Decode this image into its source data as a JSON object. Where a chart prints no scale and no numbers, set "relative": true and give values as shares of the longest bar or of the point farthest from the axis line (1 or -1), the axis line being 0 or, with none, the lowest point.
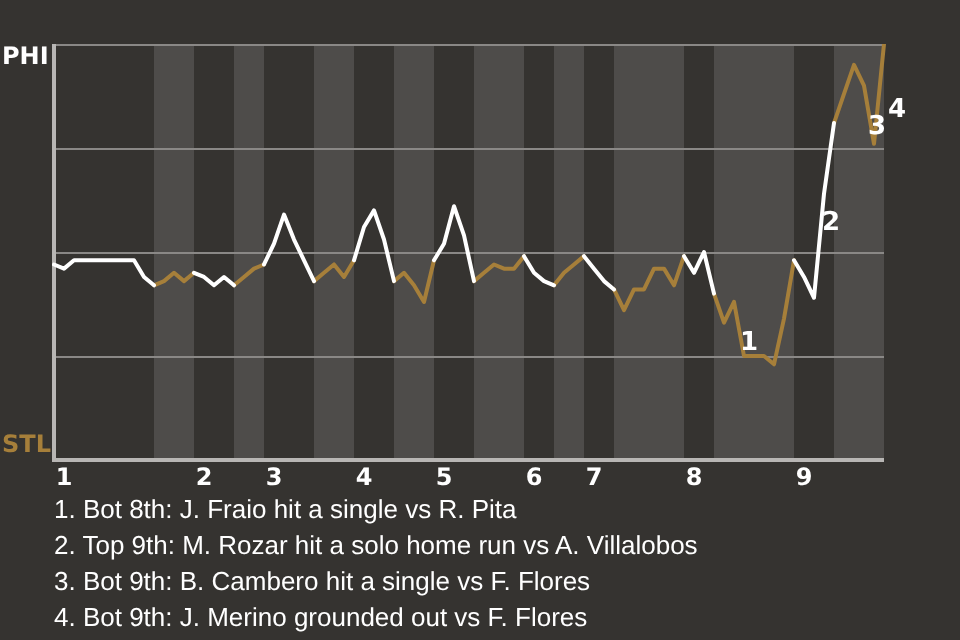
{
  "chart_data": {
    "type": "line",
    "relative": true,
    "marker": "none",
    "legend": false,
    "categories": [
      null,
      "1",
      null,
      null,
      null,
      null,
      null,
      null,
      null,
      null,
      null,
      null,
      null,
      null,
      null,
      "2",
      null,
      null,
      null,
      null,
      null,
      null,
      "3",
      null,
      null,
      null,
      null,
      null,
      null,
      null,
      null,
      "4",
      null,
      null,
      null,
      null,
      null,
      null,
      null,
      "5",
      null,
      null,
      null,
      null,
      null,
      null,
      null,
      null,
      "6",
      null,
      null,
      null,
      null,
      null,
      "7",
      null,
      null,
      null,
      null,
      null,
      null,
      null,
      null,
      null,
      "8",
      null,
      null,
      null,
      null,
      null,
      null,
      null,
      null,
      null,
      null,
      "9",
      null,
      null,
      null,
      null,
      null,
      null,
      null,
      null
    ],
    "ref_lines": [
      {
        "axis": "y",
        "value": 0.25,
        "color": "#8a8886"
      },
      {
        "axis": "y",
        "value": 0.5,
        "color": "#8a8886"
      },
      {
        "axis": "y",
        "value": 0.75,
        "color": "#8a8886"
      },
      {
        "axis": "y",
        "value": 1,
        "color": "#8a8886"
      }
    ],
    "series": [
      {
        "color": "#ffffff",
        "values": [
          0.47,
          0.46,
          0.48,
          0.48,
          0.48,
          0.48,
          0.48,
          0.48,
          0.48,
          0.44,
          0.42,
          null,
          null,
          null,
          0.45,
          0.44,
          0.42,
          0.44,
          0.42,
          null,
          null,
          0.47,
          0.52,
          0.59,
          0.53,
          0.48,
          0.43,
          null,
          null,
          null,
          0.48,
          0.56,
          0.6,
          0.53,
          0.43,
          null,
          null,
          null,
          0.48,
          0.52,
          0.61,
          0.54,
          0.43,
          null,
          null,
          null,
          null,
          0.49,
          0.45,
          0.43,
          0.42,
          null,
          null,
          0.49,
          0.46,
          0.43,
          0.41,
          null,
          null,
          null,
          null,
          null,
          null,
          0.49,
          0.45,
          0.5,
          0.4,
          null,
          null,
          null,
          null,
          null,
          null,
          null,
          0.48,
          0.44,
          0.39,
          0.64,
          0.81,
          null,
          null,
          null,
          null,
          null
        ]
      },
      {
        "color": "#a67f3a",
        "values": [
          null,
          null,
          null,
          null,
          null,
          null,
          null,
          null,
          null,
          null,
          0.42,
          0.43,
          0.45,
          0.43,
          0.45,
          null,
          null,
          null,
          0.42,
          0.44,
          0.46,
          0.47,
          null,
          null,
          null,
          null,
          0.43,
          0.45,
          0.47,
          0.44,
          0.48,
          null,
          null,
          null,
          0.43,
          0.45,
          0.42,
          0.38,
          0.48,
          null,
          null,
          null,
          0.43,
          0.45,
          0.47,
          0.46,
          0.46,
          0.49,
          null,
          null,
          0.42,
          0.45,
          0.47,
          0.49,
          null,
          null,
          0.41,
          0.36,
          0.41,
          0.41,
          0.46,
          0.46,
          0.42,
          0.49,
          null,
          null,
          0.4,
          0.33,
          0.38,
          0.25,
          0.25,
          0.25,
          0.23,
          0.34,
          0.48,
          null,
          null,
          null,
          0.81,
          0.88,
          0.95,
          0.9,
          0.76,
          1
        ]
      }
    ],
    "annotations": [
      "PHI",
      "STL",
      {
        "text": "1",
        "y": 0.28
      },
      {
        "text": "2",
        "y": 0.57
      },
      {
        "text": "3",
        "y": 0.8
      },
      "4",
      "1. Bot 8th: J. Fraio hit a single vs R. Pita",
      "2. Top 9th: M. Rozar hit a solo home run vs A. Villalobos",
      "3. Bot 9th: B. Cambero hit a single vs F. Flores",
      "4. Bot 9th: J. Merino grounded out vs F. Flores"
    ]
  }
}
